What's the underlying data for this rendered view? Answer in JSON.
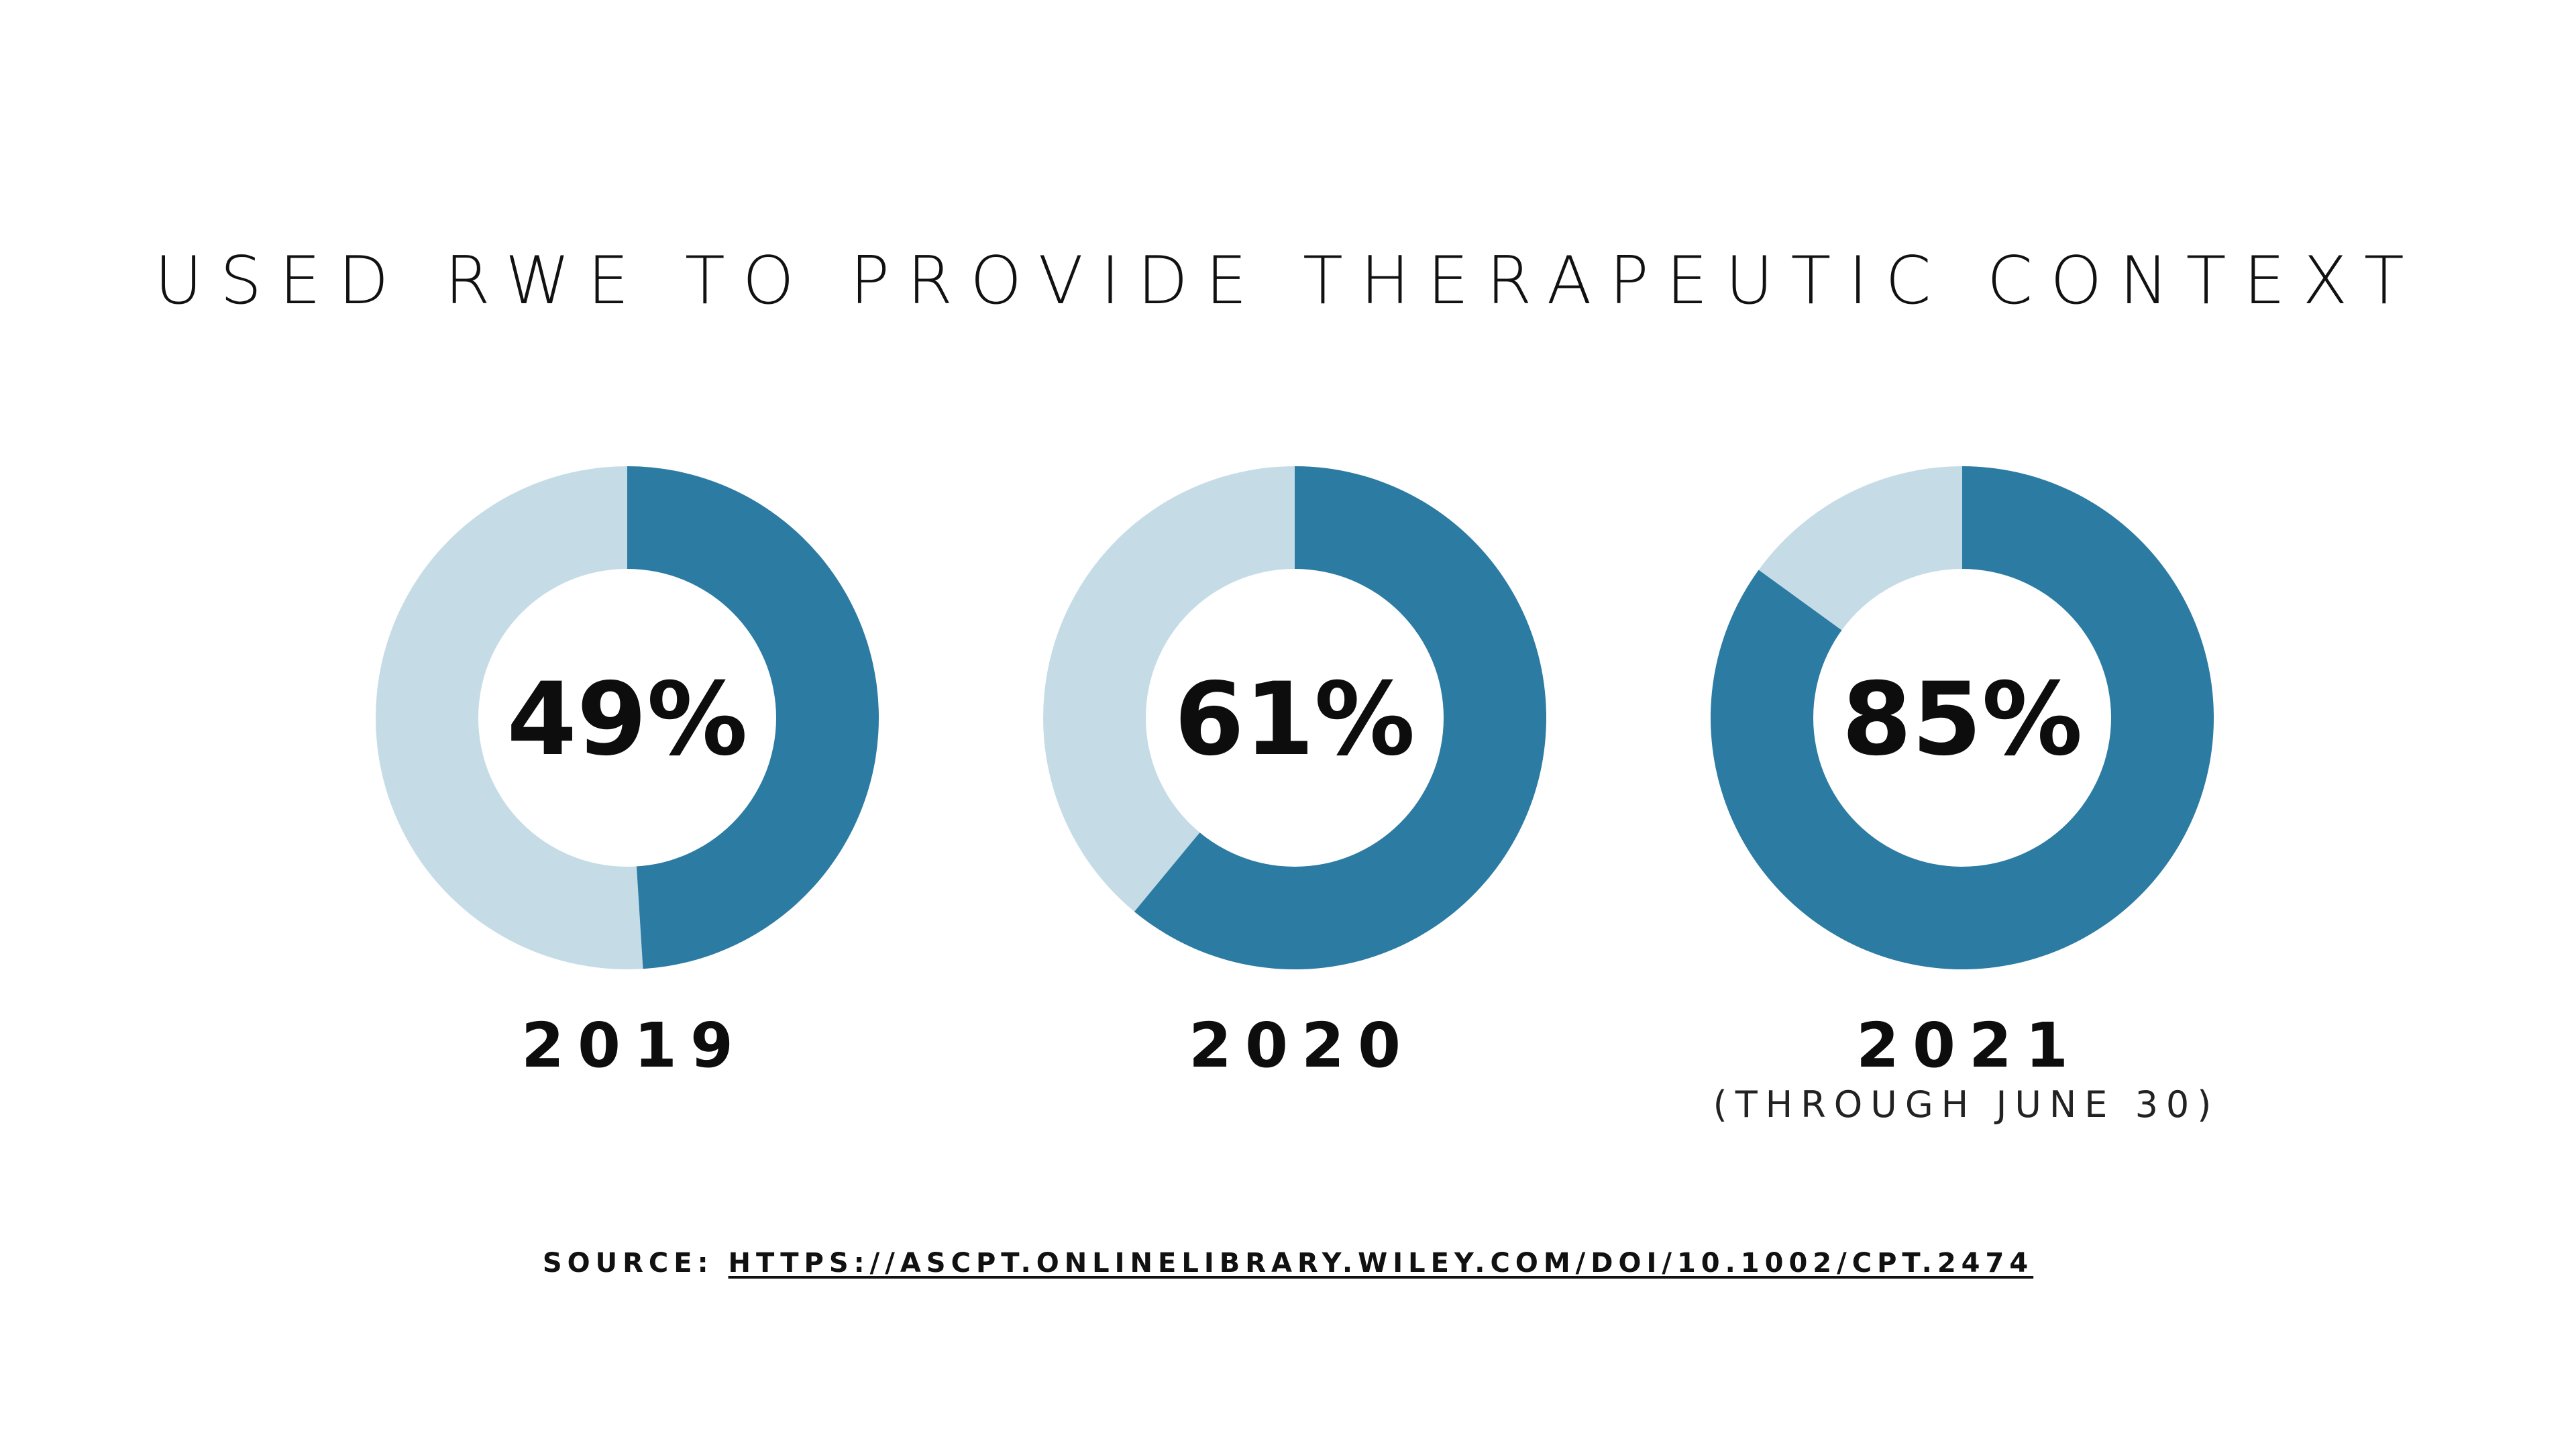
{
  "title": "USED RWE TO PROVIDE THERAPEUTIC CONTEXT",
  "colors": {
    "filled": "#2c7ba3",
    "remaining": "#c5dce7",
    "hole": "#ffffff",
    "text": "#111111"
  },
  "chart_data": {
    "type": "pie",
    "variant": "donut",
    "title": "USED RWE TO PROVIDE THERAPEUTIC CONTEXT",
    "unit": "%",
    "categories": [
      "2019",
      "2020",
      "2021"
    ],
    "values": [
      49,
      61,
      85
    ],
    "data_labels": [
      "49%",
      "61%",
      "85%"
    ],
    "notes": [
      "",
      "",
      "(THROUGH JUNE 30)"
    ]
  },
  "source": {
    "prefix": "SOURCE:",
    "link_text": "HTTPS://ASCPT.ONLINELIBRARY.WILEY.COM/DOI/10.1002/CPT.2474"
  }
}
